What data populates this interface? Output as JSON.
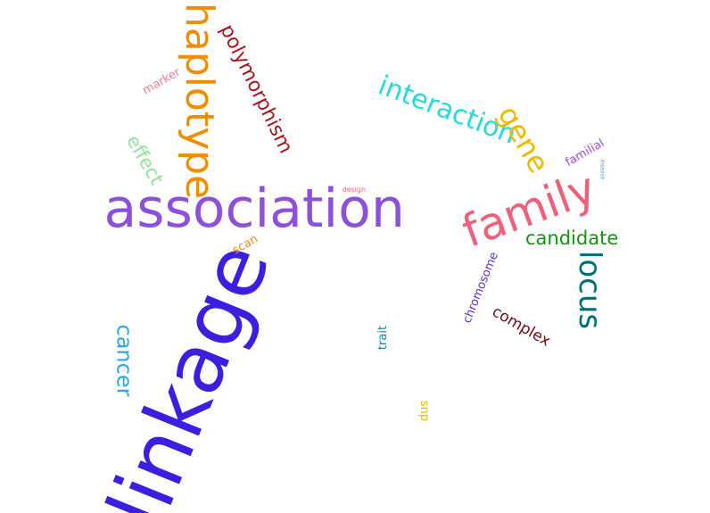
{
  "words": {
    "association": {
      "text": "association",
      "color": "#8e4fdc"
    },
    "linkage": {
      "text": "linkage",
      "color": "#3b1fe0"
    },
    "haplotype": {
      "text": "haplotype",
      "color": "#f28c00"
    },
    "family": {
      "text": "family",
      "color": "#f0607a"
    },
    "polymorphism": {
      "text": "polymorphism",
      "color": "#b0121a"
    },
    "interaction": {
      "text": "interaction",
      "color": "#22dcdc"
    },
    "gene": {
      "text": "gene",
      "color": "#f2b800"
    },
    "locus": {
      "text": "locus",
      "color": "#00707c"
    },
    "candidate": {
      "text": "candidate",
      "color": "#0a9a0a"
    },
    "effect": {
      "text": "effect",
      "color": "#8ee29a"
    },
    "cancer": {
      "text": "cancer",
      "color": "#2aa9ea"
    },
    "complex": {
      "text": "complex",
      "color": "#7a0a10"
    },
    "chromosome": {
      "text": "chromosome",
      "color": "#5a2ae0"
    },
    "familial": {
      "text": "familial",
      "color": "#9a4ad8"
    },
    "marker": {
      "text": "marker",
      "color": "#f37a90"
    },
    "scan": {
      "text": "scan",
      "color": "#ee8a10"
    },
    "trait": {
      "text": "trait",
      "color": "#108a90"
    },
    "snp": {
      "text": "snp",
      "color": "#e8c000"
    },
    "design": {
      "text": "design",
      "color": "#f06a7a"
    },
    "disease": {
      "text": "disease",
      "color": "#3aa0e8"
    }
  }
}
